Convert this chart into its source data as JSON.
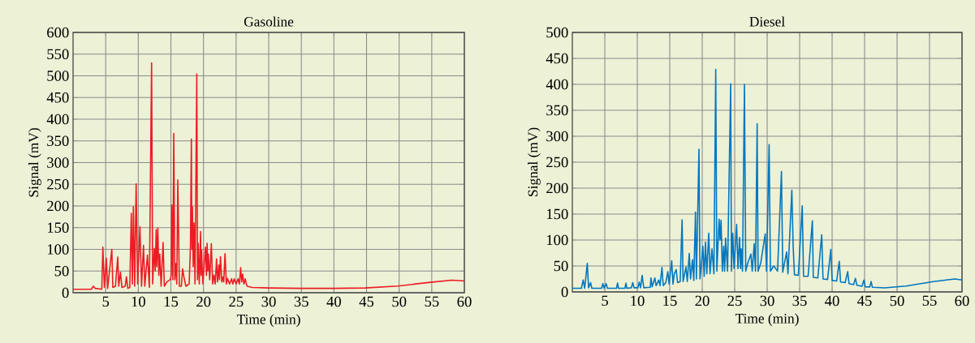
{
  "chart_data": [
    {
      "type": "line",
      "title": "Gasoline",
      "xlabel": "Time (min)",
      "ylabel": "Signal (mV)",
      "xlim": [
        0,
        60
      ],
      "ylim": [
        0,
        600
      ],
      "xticks": [
        5,
        10,
        15,
        20,
        25,
        30,
        35,
        40,
        45,
        50,
        55,
        60
      ],
      "yticks": [
        0,
        50,
        100,
        150,
        200,
        250,
        300,
        350,
        400,
        450,
        500,
        550,
        600
      ],
      "grid": true,
      "series": [
        {
          "color": "#ed1c24",
          "x": [
            0,
            2.8,
            3.1,
            3.4,
            4.4,
            4.57,
            4.8,
            5.1,
            5.3,
            5.94,
            6.1,
            6.5,
            6.85,
            7.0,
            7.26,
            7.5,
            8.0,
            8.18,
            8.4,
            8.7,
            8.93,
            9.1,
            9.25,
            9.45,
            9.67,
            9.9,
            10.25,
            10.5,
            10.8,
            11.0,
            11.4,
            11.7,
            12.04,
            12.2,
            12.45,
            12.6,
            12.74,
            12.85,
            13.0,
            13.15,
            13.3,
            13.5,
            13.8,
            14.0,
            14.4,
            14.9,
            15.05,
            15.15,
            15.3,
            15.44,
            15.6,
            15.77,
            15.9,
            16.06,
            16.3,
            16.6,
            16.8,
            17.0,
            17.3,
            17.8,
            18.0,
            18.14,
            18.22,
            18.3,
            18.42,
            18.55,
            18.7,
            18.97,
            19.08,
            19.18,
            19.35,
            19.55,
            19.62,
            19.7,
            19.9,
            20.3,
            20.45,
            20.55,
            20.65,
            20.75,
            20.95,
            21.2,
            21.4,
            21.6,
            21.8,
            22.0,
            22.15,
            22.35,
            22.45,
            22.6,
            22.8,
            22.95,
            23.1,
            23.3,
            23.5,
            23.66,
            24.0,
            24.3,
            24.5,
            24.7,
            25.0,
            25.3,
            25.5,
            25.7,
            25.85,
            26.0,
            26.2,
            26.4,
            26.6,
            26.7,
            27.5,
            30,
            35,
            40,
            44.8,
            49.8,
            54.8,
            58.1,
            60
          ],
          "values": [
            8,
            8,
            15,
            10,
            8,
            105,
            12,
            80,
            10,
            100,
            12,
            15,
            82,
            15,
            47,
            12,
            15,
            37,
            10,
            12,
            183,
            20,
            198,
            15,
            251,
            20,
            152,
            15,
            109,
            15,
            87,
            12,
            530,
            20,
            102,
            50,
            145,
            60,
            149,
            40,
            89,
            15,
            116,
            15,
            25,
            30,
            40,
            202,
            30,
            367,
            30,
            67,
            20,
            260,
            15,
            15,
            55,
            36,
            15,
            20,
            108,
            354,
            100,
            198,
            60,
            161,
            20,
            504,
            30,
            114,
            20,
            141,
            40,
            99,
            20,
            105,
            40,
            114,
            50,
            89,
            30,
            113,
            20,
            41,
            20,
            78,
            25,
            64,
            30,
            83,
            25,
            36,
            25,
            90,
            20,
            33,
            20,
            32,
            20,
            32,
            20,
            32,
            20,
            58,
            25,
            43,
            20,
            32,
            18,
            15,
            12,
            11,
            10,
            10,
            11,
            15.5,
            24,
            29,
            27
          ]
        }
      ]
    },
    {
      "type": "line",
      "title": "Diesel",
      "xlabel": "Time (min)",
      "ylabel": "Signal (mV)",
      "xlim": [
        0,
        60
      ],
      "ylim": [
        0,
        500
      ],
      "xticks": [
        5,
        10,
        15,
        20,
        25,
        30,
        35,
        40,
        45,
        50,
        55,
        60
      ],
      "yticks": [
        0,
        50,
        100,
        150,
        200,
        250,
        300,
        350,
        400,
        450,
        500
      ],
      "grid": true,
      "series": [
        {
          "color": "#0077c0",
          "x": [
            0,
            1.4,
            1.67,
            1.9,
            2.3,
            2.5,
            2.8,
            3.0,
            4.5,
            4.7,
            4.9,
            5.2,
            5.4,
            6.8,
            6.96,
            7.1,
            8.1,
            8.25,
            8.4,
            9.1,
            9.3,
            9.5,
            10.1,
            10.3,
            10.5,
            10.75,
            11.0,
            12.0,
            12.1,
            12.3,
            12.7,
            12.9,
            13.3,
            13.5,
            13.8,
            14.0,
            14.4,
            14.7,
            14.9,
            15.3,
            15.5,
            15.7,
            16.0,
            16.2,
            16.6,
            16.9,
            17.05,
            17.5,
            17.7,
            18.0,
            18.2,
            18.5,
            18.7,
            18.96,
            19.1,
            19.5,
            19.65,
            19.85,
            20.1,
            20.3,
            20.5,
            20.7,
            21.0,
            21.2,
            21.5,
            21.8,
            22.08,
            22.25,
            22.6,
            22.75,
            22.9,
            23.1,
            23.3,
            23.45,
            23.6,
            23.9,
            24.38,
            24.5,
            24.7,
            24.9,
            25.3,
            25.5,
            25.75,
            25.9,
            26.0,
            26.2,
            26.5,
            26.7,
            27.0,
            27.5,
            27.7,
            28.0,
            28.2,
            28.46,
            28.6,
            29.0,
            29.7,
            29.9,
            30.3,
            30.5,
            31.0,
            31.6,
            32.2,
            32.4,
            33.0,
            33.2,
            33.8,
            34.0,
            34.2,
            34.8,
            35.4,
            35.6,
            36.3,
            36.96,
            37.1,
            37.8,
            38.4,
            38.6,
            39.3,
            39.8,
            40.0,
            40.7,
            41.1,
            41.3,
            42.0,
            42.4,
            42.6,
            43.3,
            43.6,
            43.8,
            44.6,
            44.9,
            45.1,
            45.8,
            46.0,
            46.2,
            48.1,
            51.4,
            55.6,
            58.9,
            60
          ],
          "values": [
            7,
            7,
            23,
            7,
            55,
            8,
            18,
            7,
            7,
            16,
            7,
            16,
            7,
            7,
            17,
            7,
            7,
            17,
            7,
            8,
            18,
            8,
            8,
            19,
            8,
            32,
            8,
            9,
            27,
            10,
            27,
            12,
            23,
            12,
            47,
            12,
            18,
            39,
            15,
            60,
            15,
            35,
            43,
            18,
            20,
            139,
            20,
            48,
            20,
            74,
            25,
            62,
            22,
            154,
            25,
            275,
            25,
            50,
            88,
            30,
            96,
            35,
            113,
            35,
            83,
            35,
            429,
            40,
            140,
            100,
            138,
            40,
            88,
            40,
            104,
            40,
            401,
            40,
            113,
            45,
            130,
            45,
            105,
            45,
            83,
            40,
            400,
            40,
            55,
            73,
            40,
            93,
            40,
            324,
            40,
            55,
            112,
            40,
            284,
            40,
            50,
            40,
            232,
            38,
            77,
            35,
            196,
            88,
            33,
            32,
            166,
            30,
            30,
            137,
            28,
            27,
            110,
            25,
            24,
            82,
            22,
            21,
            59,
            19,
            18,
            39,
            16,
            14,
            26,
            13,
            11,
            23,
            10,
            9.5,
            20,
            9,
            7.8,
            11.4,
            19.8,
            25,
            23
          ]
        }
      ]
    }
  ]
}
